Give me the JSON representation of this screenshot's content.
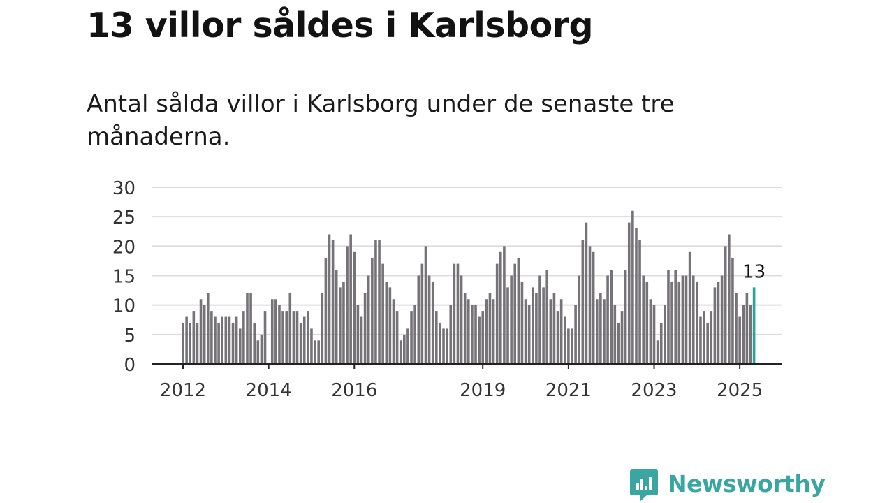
{
  "title": "13 villor såldes i Karlsborg",
  "subtitle": "Antal sålda villor i Karlsborg under de senaste tre månaderna.",
  "brand": {
    "name": "Newsworthy",
    "icon": "newsworthy-logo-icon",
    "color": "#3aa6a1"
  },
  "colors": {
    "bar": "#767378",
    "highlight": "#2aa39b",
    "grid": "#dcdcdc",
    "axis": "#222222"
  },
  "chart_data": {
    "type": "bar",
    "title": "13 villor såldes i Karlsborg",
    "subtitle": "Antal sålda villor i Karlsborg under de senaste tre månaderna.",
    "xlabel": "",
    "ylabel": "",
    "ylim": [
      0,
      30
    ],
    "yticks": [
      0,
      5,
      10,
      15,
      20,
      25,
      30
    ],
    "grid": true,
    "x_ticks": [
      {
        "label": "2012",
        "index": 0
      },
      {
        "label": "2014",
        "index": 24
      },
      {
        "label": "2016",
        "index": 48
      },
      {
        "label": "2019",
        "index": 84
      },
      {
        "label": "2021",
        "index": 108
      },
      {
        "label": "2023",
        "index": 132
      },
      {
        "label": "2025",
        "index": 156
      }
    ],
    "first_month": "2012-01",
    "values": [
      7,
      8,
      7,
      9,
      7,
      11,
      10,
      12,
      9,
      8,
      7,
      8,
      8,
      8,
      7,
      8,
      6,
      9,
      12,
      12,
      7,
      4,
      5,
      9,
      0,
      11,
      11,
      10,
      9,
      9,
      12,
      9,
      9,
      7,
      8,
      9,
      6,
      4,
      4,
      12,
      18,
      22,
      21,
      16,
      13,
      14,
      20,
      22,
      19,
      10,
      8,
      12,
      15,
      18,
      21,
      21,
      17,
      14,
      13,
      11,
      9,
      4,
      5,
      6,
      9,
      10,
      15,
      17,
      20,
      15,
      14,
      9,
      7,
      6,
      6,
      10,
      17,
      17,
      15,
      12,
      11,
      10,
      10,
      8,
      9,
      11,
      12,
      11,
      17,
      19,
      20,
      13,
      15,
      17,
      18,
      14,
      11,
      10,
      13,
      12,
      15,
      13,
      16,
      11,
      12,
      9,
      11,
      8,
      6,
      6,
      10,
      15,
      21,
      24,
      20,
      19,
      11,
      12,
      11,
      15,
      16,
      10,
      7,
      9,
      16,
      24,
      26,
      23,
      21,
      15,
      14,
      11,
      10,
      4,
      7,
      10,
      16,
      14,
      16,
      14,
      15,
      15,
      19,
      15,
      14,
      8,
      9,
      7,
      9,
      13,
      14,
      15,
      20,
      22,
      18,
      12,
      8,
      10,
      12,
      10,
      13
    ],
    "highlight": {
      "index": 160,
      "value": 13,
      "label": "13"
    }
  }
}
